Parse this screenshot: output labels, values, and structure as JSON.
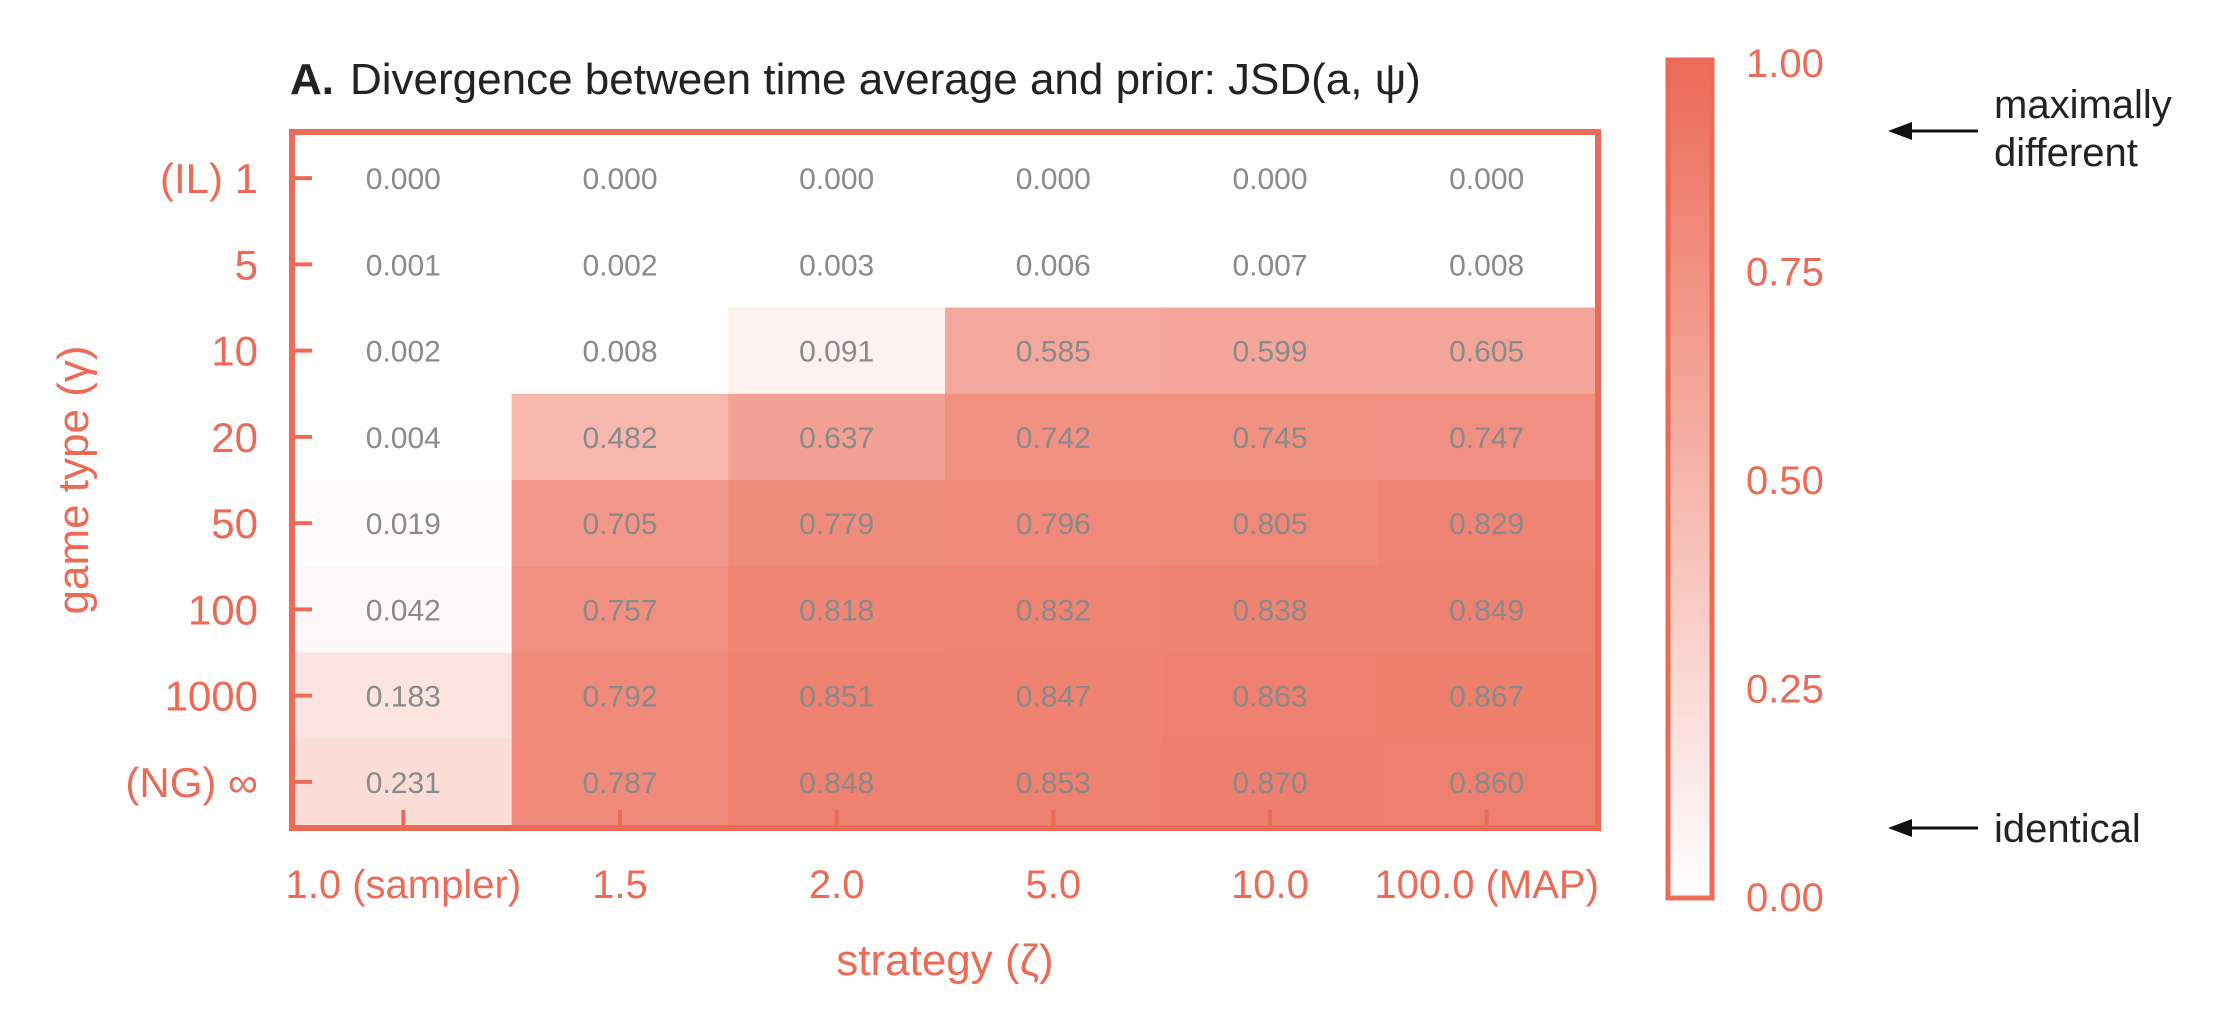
{
  "chart_data": {
    "type": "heatmap",
    "title_prefix": "A.",
    "title": "Divergence between time average and prior: JSD(a, ψ)",
    "xlabel": "strategy (ζ)",
    "ylabel": "game type (γ)",
    "x_categories": [
      "1.0 (sampler)",
      "1.5",
      "2.0",
      "5.0",
      "10.0",
      "100.0 (MAP)"
    ],
    "y_categories": [
      "(IL) 1",
      "5",
      "10",
      "20",
      "50",
      "100",
      "1000",
      "(NG) ∞"
    ],
    "values": [
      [
        0.0,
        0.0,
        0.0,
        0.0,
        0.0,
        0.0
      ],
      [
        0.001,
        0.002,
        0.003,
        0.006,
        0.007,
        0.008
      ],
      [
        0.002,
        0.008,
        0.091,
        0.585,
        0.599,
        0.605
      ],
      [
        0.004,
        0.482,
        0.637,
        0.742,
        0.745,
        0.747
      ],
      [
        0.019,
        0.705,
        0.779,
        0.796,
        0.805,
        0.829
      ],
      [
        0.042,
        0.757,
        0.818,
        0.832,
        0.838,
        0.849
      ],
      [
        0.183,
        0.792,
        0.851,
        0.847,
        0.863,
        0.867
      ],
      [
        0.231,
        0.787,
        0.848,
        0.853,
        0.87,
        0.86
      ]
    ],
    "value_labels": [
      [
        "0.000",
        "0.000",
        "0.000",
        "0.000",
        "0.000",
        "0.000"
      ],
      [
        "0.001",
        "0.002",
        "0.003",
        "0.006",
        "0.007",
        "0.008"
      ],
      [
        "0.002",
        "0.008",
        "0.091",
        "0.585",
        "0.599",
        "0.605"
      ],
      [
        "0.004",
        "0.482",
        "0.637",
        "0.742",
        "0.745",
        "0.747"
      ],
      [
        "0.019",
        "0.705",
        "0.779",
        "0.796",
        "0.805",
        "0.829"
      ],
      [
        "0.042",
        "0.757",
        "0.818",
        "0.832",
        "0.838",
        "0.849"
      ],
      [
        "0.183",
        "0.792",
        "0.851",
        "0.847",
        "0.863",
        "0.867"
      ],
      [
        "0.231",
        "0.787",
        "0.848",
        "0.853",
        "0.870",
        "0.860"
      ]
    ],
    "colorbar": {
      "range": [
        0,
        1
      ],
      "ticks": [
        "1.00",
        "0.75",
        "0.50",
        "0.25",
        "0.00"
      ],
      "tick_values": [
        1.0,
        0.75,
        0.5,
        0.25,
        0.0
      ],
      "annotation_top": [
        "maximally",
        "different"
      ],
      "annotation_bottom": "identical"
    },
    "colors": {
      "accent": "#ec6b57",
      "low": "#ffffff",
      "high": "#ec6b57",
      "cell_text": "#8a8a8a",
      "title_text": "#222222"
    }
  }
}
